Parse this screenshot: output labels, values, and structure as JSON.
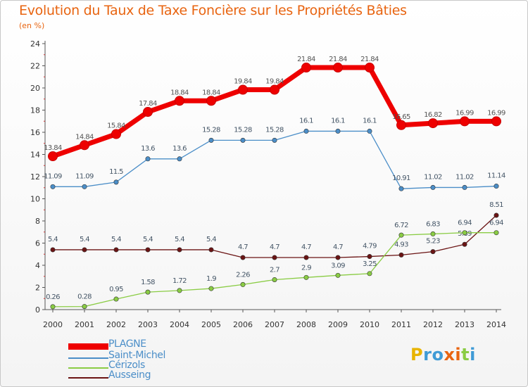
{
  "title": "Evolution du Taux de Taxe Foncière sur les Propriétés Bâties",
  "subtitle": "(en %)",
  "colors": {
    "PLAGNE": "#ee0000",
    "Saint-Michel": "#4b8ec8",
    "Cérizols": "#8acc44",
    "Ausseing": "#6b1414",
    "title": "#e86410"
  },
  "logo": {
    "text": "Proxiti",
    "letters": [
      "P",
      "r",
      "o",
      "x",
      "i",
      "t",
      "i"
    ],
    "colors": [
      "#e8b400",
      "#3f9bd6",
      "#3f9bd6",
      "#e86410",
      "#e86410",
      "#8acc44",
      "#3f9bd6"
    ]
  },
  "chart_data": {
    "type": "line",
    "x": [
      2000,
      2001,
      2002,
      2003,
      2004,
      2005,
      2006,
      2007,
      2008,
      2009,
      2010,
      2011,
      2012,
      2013,
      2014
    ],
    "ylim": [
      0,
      24
    ],
    "yticks": [
      0,
      2,
      4,
      6,
      8,
      10,
      12,
      14,
      16,
      18,
      20,
      22,
      24
    ],
    "grid": false,
    "legend": "bottom-left",
    "series": [
      {
        "name": "PLAGNE",
        "values": [
          13.84,
          14.84,
          15.84,
          17.84,
          18.84,
          18.84,
          19.84,
          19.84,
          21.84,
          21.84,
          21.84,
          16.65,
          16.82,
          16.99,
          16.99
        ],
        "labels": [
          "13.84",
          "14.84",
          "15.84",
          "17.84",
          "18.84",
          "18.84",
          "19.84",
          "19.84",
          "21.84",
          "21.84",
          "21.84",
          "16.65",
          "16.82",
          "16.99",
          "16.99"
        ]
      },
      {
        "name": "Saint-Michel",
        "values": [
          11.09,
          11.09,
          11.5,
          13.6,
          13.6,
          15.28,
          15.28,
          15.28,
          16.1,
          16.1,
          16.1,
          10.91,
          11.02,
          11.02,
          11.14
        ],
        "labels": [
          "11.09",
          "11.09",
          "11.5",
          "13.6",
          "13.6",
          "15.28",
          "15.28",
          "15.28",
          "16.1",
          "16.1",
          "16.1",
          "10.91",
          "11.02",
          "11.02",
          "11.14"
        ]
      },
      {
        "name": "Cérizols",
        "values": [
          0.26,
          0.28,
          0.95,
          1.58,
          1.72,
          1.9,
          2.26,
          2.7,
          2.9,
          3.09,
          3.25,
          6.72,
          6.83,
          6.94,
          6.94
        ],
        "labels": [
          "0.26",
          "0.28",
          "0.95",
          "1.58",
          "1.72",
          "1.9",
          "2.26",
          "2.7",
          "2.9",
          "3.09",
          "3.25",
          "6.72",
          "6.83",
          "6.94",
          "6.94"
        ]
      },
      {
        "name": "Ausseing",
        "values": [
          5.4,
          5.4,
          5.4,
          5.4,
          5.4,
          5.4,
          4.7,
          4.7,
          4.7,
          4.7,
          4.79,
          4.93,
          5.23,
          5.89,
          8.51
        ],
        "labels": [
          "5.4",
          "5.4",
          "5.4",
          "5.4",
          "5.4",
          "5.4",
          "4.7",
          "4.7",
          "4.7",
          "4.7",
          "4.79",
          "4.93",
          "5.23",
          "5.89",
          "8.51"
        ]
      }
    ]
  }
}
